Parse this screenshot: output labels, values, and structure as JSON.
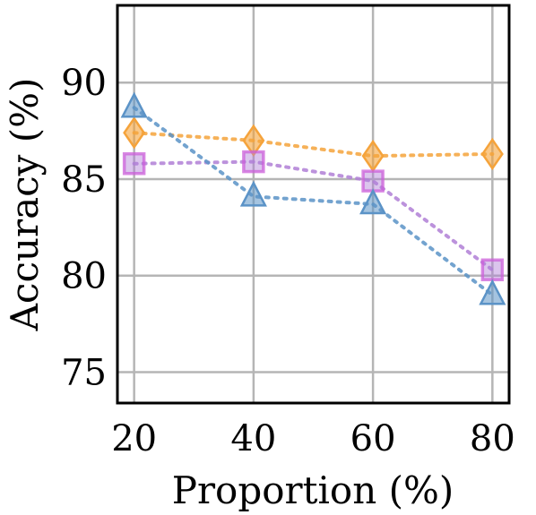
{
  "chart_data": {
    "type": "line",
    "title": "",
    "xlabel": "Proportion (%)",
    "ylabel": "Accuracy (%)",
    "x": [
      20,
      40,
      60,
      80
    ],
    "xticks": [
      "20",
      "40",
      "60",
      "80"
    ],
    "yticks": [
      "75",
      "80",
      "85",
      "90"
    ],
    "xlim": [
      17.2,
      82.8
    ],
    "ylim": [
      73.4,
      94
    ],
    "grid": true,
    "series": [
      {
        "marker": "diamond",
        "color": "#f5a33b",
        "values": [
          87.4,
          87.0,
          86.2,
          86.3
        ]
      },
      {
        "marker": "square",
        "color": "#b07fd6",
        "values": [
          85.8,
          85.9,
          84.9,
          80.3
        ]
      },
      {
        "marker": "triangle",
        "color": "#5b93c7",
        "values": [
          88.7,
          84.1,
          83.7,
          79.0
        ]
      }
    ]
  }
}
